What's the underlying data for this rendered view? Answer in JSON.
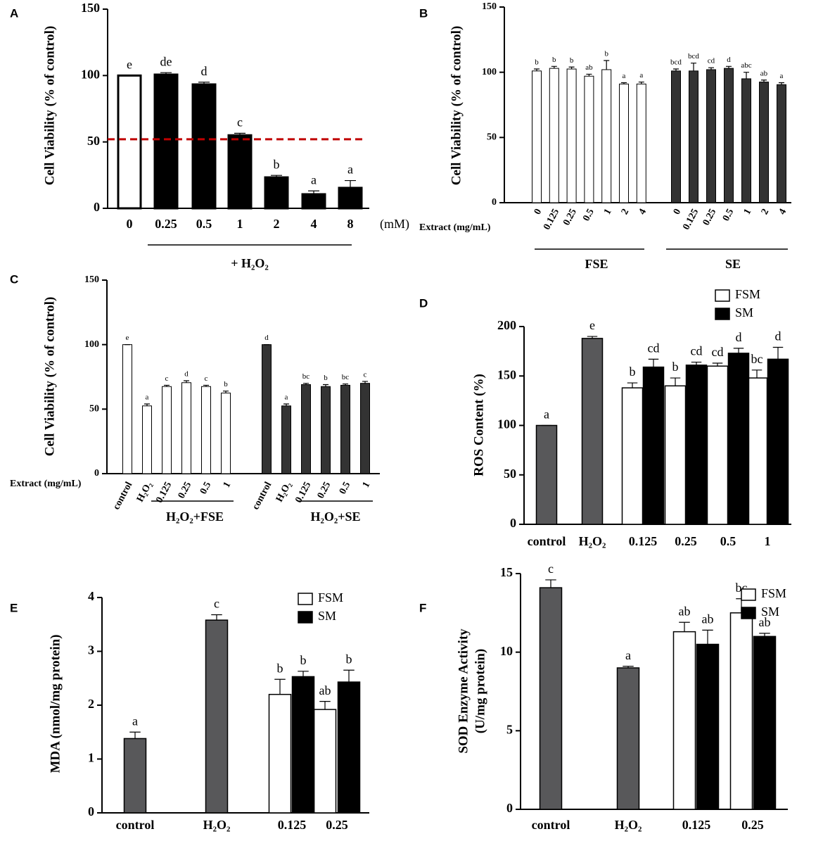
{
  "chart_data": [
    {
      "type": "bar",
      "panel": "A",
      "ylabel": "Cell  Viability (% of control)",
      "categories": [
        "0",
        "0.25",
        "0.5",
        "1",
        "2",
        "4",
        "8"
      ],
      "x_unit": "(mM)",
      "ylim": [
        0,
        150
      ],
      "yticks": [
        0,
        50,
        100,
        150
      ],
      "series": [
        {
          "colors": [
            "#ffffff",
            "#000000",
            "#000000",
            "#000000",
            "#000000",
            "#000000",
            "#000000"
          ],
          "values": [
            100,
            100.7,
            93.3,
            55,
            23.3,
            10.6,
            15.4
          ],
          "errors": [
            0,
            1.5,
            1.7,
            1.5,
            1.5,
            2.5,
            5.5
          ],
          "letters": [
            "e",
            "de",
            "d",
            "c",
            "b",
            "a",
            "a"
          ]
        }
      ],
      "groups": [
        {
          "label": "+ H₂O₂"
        }
      ],
      "reference_line": {
        "value": 52,
        "color": "#c00000"
      }
    },
    {
      "type": "bar",
      "panel": "B",
      "ylabel": "Cell  Viability (% of control)",
      "x_label": "Extract (mg/mL)",
      "categories": [
        "0",
        "0.125",
        "0.25",
        "0.5",
        "1",
        "2",
        "4"
      ],
      "ylim": [
        0,
        150
      ],
      "yticks": [
        0,
        50,
        100,
        150
      ],
      "series": [
        {
          "color": "#ffffff",
          "values": [
            101,
            103,
            102.5,
            97,
            102,
            91,
            91
          ],
          "errors": [
            1.5,
            1.5,
            1.5,
            1.5,
            7,
            1,
            1.5
          ],
          "letters": [
            "b",
            "b",
            "b",
            "ab",
            "b",
            "a",
            "a"
          ]
        },
        {
          "color": "#333333",
          "values": [
            101,
            101,
            102,
            103,
            95,
            92.5,
            90.5
          ],
          "errors": [
            1.5,
            6,
            1.5,
            1.5,
            5,
            1.5,
            1.5
          ],
          "letters": [
            "bcd",
            "bcd",
            "cd",
            "d",
            "abc",
            "ab",
            "a"
          ]
        }
      ],
      "groups": [
        {
          "label": "FSE"
        },
        {
          "label": "SE"
        }
      ]
    },
    {
      "type": "bar",
      "panel": "C",
      "ylabel": "Cell  Viability (% of control)",
      "x_label": "Extract (mg/mL)",
      "categories": [
        "control",
        "H₂O₂",
        "0.125",
        "0.25",
        "0.5",
        "1"
      ],
      "ylim": [
        0,
        150
      ],
      "yticks": [
        0,
        50,
        100,
        150
      ],
      "series": [
        {
          "color": "#ffffff",
          "values": [
            100,
            52.5,
            67.5,
            70.5,
            67.5,
            62.5
          ],
          "errors": [
            0,
            1.5,
            1,
            1.5,
            1,
            1.5
          ],
          "letters": [
            "e",
            "a",
            "c",
            "d",
            "c",
            "b"
          ]
        },
        {
          "color": "#333333",
          "values": [
            100,
            52.5,
            69,
            67.5,
            68.5,
            70
          ],
          "errors": [
            0,
            1.5,
            1,
            1.5,
            1,
            1.5
          ],
          "letters": [
            "d",
            "a",
            "bc",
            "b",
            "bc",
            "c"
          ]
        }
      ],
      "groups": [
        {
          "label": "H₂O₂+FSE"
        },
        {
          "label": "H₂O₂+SE"
        }
      ]
    },
    {
      "type": "bar",
      "panel": "D",
      "ylabel": "ROS  Content (%)",
      "categories": [
        "control",
        "H₂O₂",
        "0.125",
        "0.25",
        "0.5",
        "1"
      ],
      "ylim": [
        0,
        200
      ],
      "yticks": [
        0,
        50,
        100,
        150,
        200
      ],
      "series": [
        {
          "color": "#58585a",
          "values": [
            100,
            188,
            null,
            null,
            null,
            null
          ],
          "errors": [
            0,
            2,
            null,
            null,
            null,
            null
          ],
          "letters": [
            "a",
            "e",
            null,
            null,
            null,
            null
          ]
        },
        {
          "name": "FSM",
          "color": "#ffffff",
          "values": [
            null,
            null,
            138,
            140,
            160,
            148
          ],
          "errors": [
            null,
            null,
            5,
            8,
            3,
            8
          ],
          "letters": [
            null,
            null,
            "b",
            "b",
            "cd",
            "bc"
          ]
        },
        {
          "name": "SM",
          "color": "#000000",
          "values": [
            null,
            null,
            159,
            161,
            173,
            167
          ],
          "errors": [
            null,
            null,
            8,
            3,
            5,
            12
          ],
          "letters": [
            null,
            null,
            "cd",
            "cd",
            "d",
            "d"
          ]
        }
      ]
    },
    {
      "type": "bar",
      "panel": "E",
      "ylabel": "MDA (nmol/mg protein)",
      "categories": [
        "control",
        "H₂O₂",
        "0.125",
        "0.25"
      ],
      "ylim": [
        0,
        4
      ],
      "yticks": [
        0,
        1,
        2,
        3,
        4
      ],
      "series": [
        {
          "color": "#58585a",
          "values": [
            1.38,
            3.58,
            null,
            null
          ],
          "errors": [
            0.12,
            0.1,
            null,
            null
          ],
          "letters": [
            "a",
            "c",
            null,
            null
          ]
        },
        {
          "name": "FSM",
          "color": "#ffffff",
          "values": [
            null,
            null,
            2.2,
            1.92
          ],
          "errors": [
            null,
            null,
            0.28,
            0.15
          ],
          "letters": [
            null,
            null,
            "b",
            "ab"
          ]
        },
        {
          "name": "SM",
          "color": "#000000",
          "values": [
            null,
            null,
            2.53,
            2.43
          ],
          "errors": [
            null,
            null,
            0.1,
            0.22
          ],
          "letters": [
            null,
            null,
            "b",
            "b"
          ]
        }
      ]
    },
    {
      "type": "bar",
      "panel": "F",
      "ylabel": [
        "SOD Enzyme Activity",
        "(U/mg protein)"
      ],
      "categories": [
        "control",
        "H₂O₂",
        "0.125",
        "0.25"
      ],
      "ylim": [
        0,
        15
      ],
      "yticks": [
        0,
        5,
        10,
        15
      ],
      "series": [
        {
          "color": "#58585a",
          "values": [
            14.1,
            9.0,
            null,
            null
          ],
          "errors": [
            0.5,
            0.1,
            null,
            null
          ],
          "letters": [
            "c",
            "a",
            null,
            null
          ]
        },
        {
          "name": "FSM",
          "color": "#ffffff",
          "values": [
            null,
            null,
            11.3,
            12.5
          ],
          "errors": [
            null,
            null,
            0.6,
            0.9
          ],
          "letters": [
            null,
            null,
            "ab",
            "bc"
          ]
        },
        {
          "name": "SM",
          "color": "#000000",
          "values": [
            null,
            null,
            10.5,
            11.0
          ],
          "errors": [
            null,
            null,
            0.9,
            0.2
          ],
          "letters": [
            null,
            null,
            "ab",
            "ab"
          ]
        }
      ]
    }
  ]
}
